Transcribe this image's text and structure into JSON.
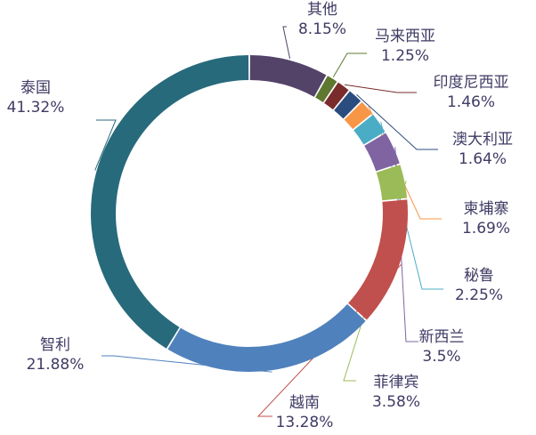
{
  "chart_data": {
    "type": "pie",
    "donut": true,
    "title": "",
    "slices": [
      {
        "name": "其他",
        "value": 8.15,
        "label": "8.15%",
        "color": "#544369"
      },
      {
        "name": "马来西亚",
        "value": 1.25,
        "label": "1.25%",
        "color": "#5e7830"
      },
      {
        "name": "印度尼西亚",
        "value": 1.46,
        "label": "1.46%",
        "color": "#7a2b2b"
      },
      {
        "name": "澳大利亚",
        "value": 1.64,
        "label": "1.64%",
        "color": "#2b4c7e"
      },
      {
        "name": "柬埔寨",
        "value": 1.69,
        "label": "1.69%",
        "color": "#f79646"
      },
      {
        "name": "秘鲁",
        "value": 2.25,
        "label": "2.25%",
        "color": "#4bacc6"
      },
      {
        "name": "新西兰",
        "value": 3.5,
        "label": "3.5%",
        "color": "#8064a2"
      },
      {
        "name": "菲律宾",
        "value": 3.58,
        "label": "3.58%",
        "color": "#9bbb59"
      },
      {
        "name": "越南",
        "value": 13.28,
        "label": "13.28%",
        "color": "#c0504d"
      },
      {
        "name": "智利",
        "value": 21.88,
        "label": "21.88%",
        "color": "#4f81bd"
      },
      {
        "name": "泰国",
        "value": 41.32,
        "label": "41.32%",
        "color": "#276a7c"
      }
    ]
  }
}
